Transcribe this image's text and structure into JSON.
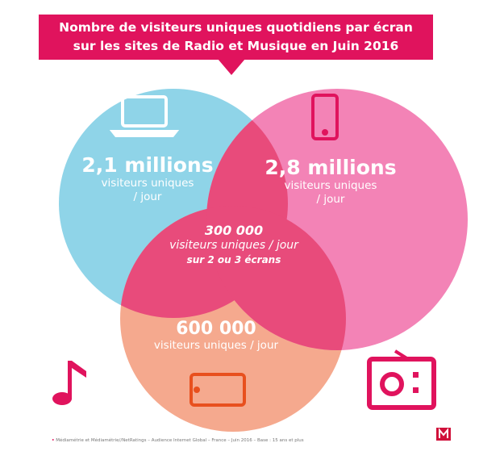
{
  "title": {
    "line1": "Nombre de visiteurs uniques quotidiens par écran",
    "line2": "sur les sites de Radio et Musique en Juin 2016"
  },
  "circles": {
    "desktop": {
      "value": "2,1 millions",
      "label1": "visiteurs uniques",
      "label2": "/ jour",
      "color": "#8fd4e8"
    },
    "mobile": {
      "value": "2,8 millions",
      "label1": "visiteurs uniques",
      "label2": "/ jour",
      "color": "#f383b6"
    },
    "tablet": {
      "value": "600 000",
      "label1": "visiteurs uniques / jour",
      "color": "#f5a98e"
    },
    "overlap": {
      "value": "300 000",
      "label1": "visiteurs uniques / jour",
      "label2": "sur 2 ou 3 écrans",
      "color": "#e84b7b"
    }
  },
  "footnote": "Médiamétrie et Médiamétrie//NetRatings – Audience Internet Global – France – Juin 2016 – Base : 15 ans et plus",
  "logo": "M",
  "accent": "#e0135d"
}
